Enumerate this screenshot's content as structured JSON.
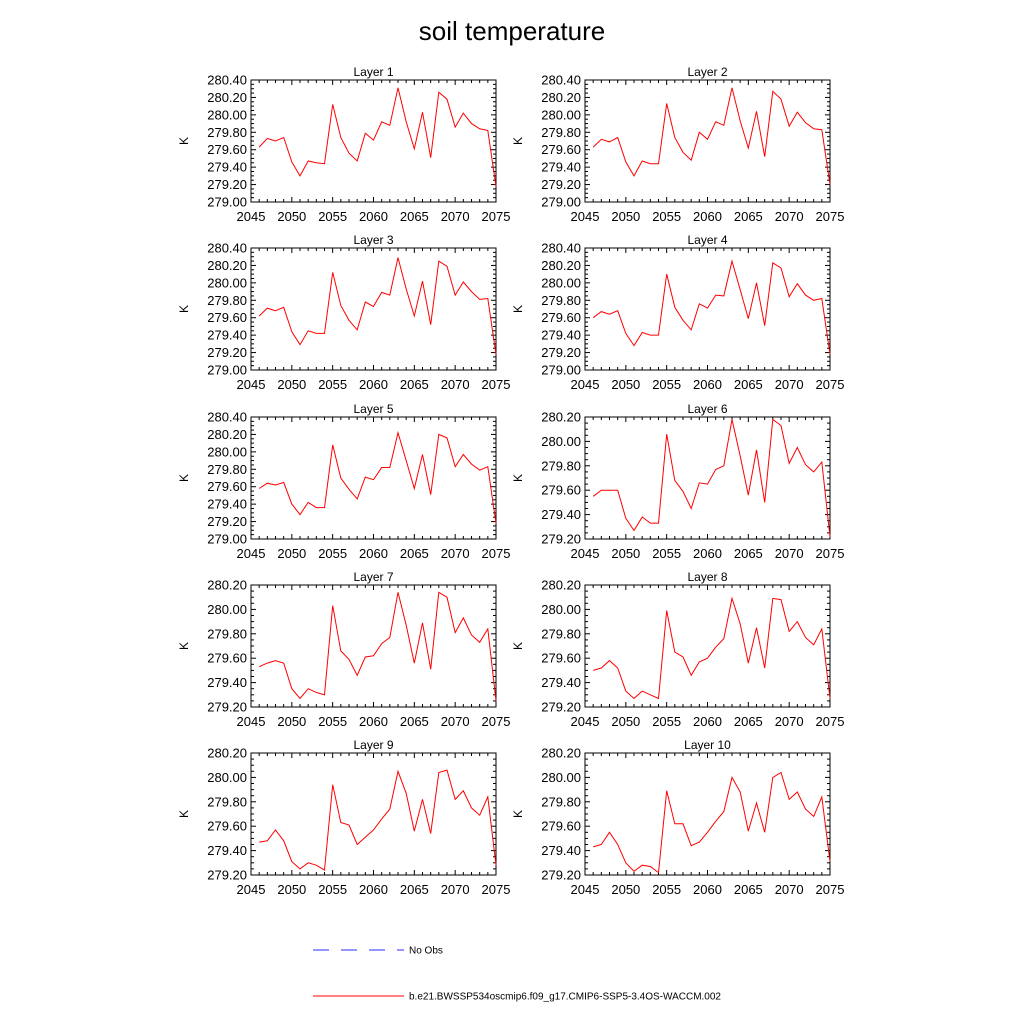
{
  "chart_data": {
    "type": "line",
    "title": "soil temperature",
    "legend": {
      "placement": "bottom-center",
      "entries": [
        {
          "label": "No Obs",
          "color": "#2b2bff",
          "style": "dashed"
        },
        {
          "label": "b.e21.BWSSP534oscmip6.f09_g17.CMIP6-SSP5-3.4OS-WACCM.002",
          "color": "#ff0000",
          "style": "solid"
        }
      ]
    },
    "x": [
      2046,
      2047,
      2048,
      2049,
      2050,
      2051,
      2052,
      2053,
      2054,
      2055,
      2056,
      2057,
      2058,
      2059,
      2060,
      2061,
      2062,
      2063,
      2064,
      2065,
      2066,
      2067,
      2068,
      2069,
      2070,
      2071,
      2072,
      2073,
      2074,
      2075
    ],
    "xlim": [
      2045,
      2075
    ],
    "xticks": [
      "2045",
      "2050",
      "2055",
      "2060",
      "2065",
      "2070",
      "2075"
    ],
    "panels": [
      {
        "title": "Layer 1",
        "ylabel": "K",
        "ylim": [
          279.0,
          280.4
        ],
        "yticks": [
          "279.00",
          "279.20",
          "279.40",
          "279.60",
          "279.80",
          "280.00",
          "280.20",
          "280.40"
        ],
        "values": [
          279.63,
          279.73,
          279.7,
          279.74,
          279.46,
          279.3,
          279.47,
          279.45,
          279.44,
          280.12,
          279.74,
          279.56,
          279.47,
          279.79,
          279.71,
          279.92,
          279.88,
          280.31,
          279.92,
          279.61,
          280.03,
          279.51,
          280.26,
          280.18,
          279.86,
          280.02,
          279.9,
          279.84,
          279.82,
          279.18
        ]
      },
      {
        "title": "Layer 2",
        "ylabel": "K",
        "ylim": [
          279.0,
          280.4
        ],
        "yticks": [
          "279.00",
          "279.20",
          "279.40",
          "279.60",
          "279.80",
          "280.00",
          "280.20",
          "280.40"
        ],
        "values": [
          279.63,
          279.72,
          279.69,
          279.74,
          279.46,
          279.3,
          279.47,
          279.44,
          279.44,
          280.13,
          279.74,
          279.57,
          279.48,
          279.8,
          279.72,
          279.92,
          279.88,
          280.31,
          279.93,
          279.62,
          280.04,
          279.52,
          280.27,
          280.18,
          279.87,
          280.03,
          279.91,
          279.84,
          279.83,
          279.2
        ]
      },
      {
        "title": "Layer 3",
        "ylabel": "K",
        "ylim": [
          279.0,
          280.4
        ],
        "yticks": [
          "279.00",
          "279.20",
          "279.40",
          "279.60",
          "279.80",
          "280.00",
          "280.20",
          "280.40"
        ],
        "values": [
          279.62,
          279.71,
          279.68,
          279.72,
          279.44,
          279.29,
          279.45,
          279.42,
          279.42,
          280.12,
          279.74,
          279.57,
          279.46,
          279.78,
          279.73,
          279.89,
          279.86,
          280.29,
          279.93,
          279.62,
          280.02,
          279.52,
          280.25,
          280.19,
          279.86,
          280.01,
          279.9,
          279.81,
          279.82,
          279.18
        ]
      },
      {
        "title": "Layer 4",
        "ylabel": "K",
        "ylim": [
          279.0,
          280.4
        ],
        "yticks": [
          "279.00",
          "279.20",
          "279.40",
          "279.60",
          "279.80",
          "280.00",
          "280.20",
          "280.40"
        ],
        "values": [
          279.6,
          279.67,
          279.64,
          279.68,
          279.42,
          279.28,
          279.43,
          279.4,
          279.4,
          280.1,
          279.72,
          279.57,
          279.46,
          279.76,
          279.71,
          279.86,
          279.85,
          280.25,
          279.92,
          279.59,
          280.0,
          279.51,
          280.23,
          280.17,
          279.84,
          279.99,
          279.86,
          279.8,
          279.82,
          279.18
        ]
      },
      {
        "title": "Layer 5",
        "ylabel": "K",
        "ylim": [
          279.0,
          280.4
        ],
        "yticks": [
          "279.00",
          "279.20",
          "279.40",
          "279.60",
          "279.80",
          "280.00",
          "280.20",
          "280.40"
        ],
        "values": [
          279.58,
          279.64,
          279.62,
          279.65,
          279.4,
          279.28,
          279.42,
          279.36,
          279.36,
          280.08,
          279.7,
          279.57,
          279.46,
          279.71,
          279.68,
          279.82,
          279.82,
          280.22,
          279.9,
          279.58,
          279.97,
          279.51,
          280.2,
          280.16,
          279.83,
          279.97,
          279.86,
          279.79,
          279.83,
          279.18
        ]
      },
      {
        "title": "Layer 6",
        "ylabel": "K",
        "ylim": [
          279.2,
          280.2
        ],
        "yticks": [
          "279.20",
          "279.40",
          "279.60",
          "279.80",
          "280.00",
          "280.20"
        ],
        "values": [
          279.55,
          279.6,
          279.6,
          279.6,
          279.37,
          279.27,
          279.38,
          279.33,
          279.33,
          280.06,
          279.68,
          279.59,
          279.45,
          279.66,
          279.65,
          279.77,
          279.8,
          280.18,
          279.88,
          279.56,
          279.93,
          279.5,
          280.18,
          280.13,
          279.82,
          279.95,
          279.81,
          279.75,
          279.83,
          279.22
        ]
      },
      {
        "title": "Layer 7",
        "ylabel": "K",
        "ylim": [
          279.2,
          280.2
        ],
        "yticks": [
          "279.20",
          "279.40",
          "279.60",
          "279.80",
          "280.00",
          "280.20"
        ],
        "values": [
          279.53,
          279.56,
          279.58,
          279.56,
          279.35,
          279.27,
          279.35,
          279.32,
          279.3,
          280.03,
          279.66,
          279.59,
          279.46,
          279.61,
          279.62,
          279.72,
          279.77,
          280.14,
          279.87,
          279.56,
          279.89,
          279.51,
          280.14,
          280.1,
          279.81,
          279.93,
          279.79,
          279.73,
          279.84,
          279.25
        ]
      },
      {
        "title": "Layer 8",
        "ylabel": "K",
        "ylim": [
          279.2,
          280.2
        ],
        "yticks": [
          "279.20",
          "279.40",
          "279.60",
          "279.80",
          "280.00",
          "280.20"
        ],
        "values": [
          279.5,
          279.52,
          279.58,
          279.52,
          279.33,
          279.27,
          279.33,
          279.3,
          279.27,
          279.99,
          279.65,
          279.61,
          279.46,
          279.57,
          279.6,
          279.69,
          279.76,
          280.09,
          279.88,
          279.56,
          279.85,
          279.52,
          280.09,
          280.08,
          279.82,
          279.9,
          279.77,
          279.71,
          279.84,
          279.27
        ]
      },
      {
        "title": "Layer 9",
        "ylabel": "K",
        "ylim": [
          279.2,
          280.2
        ],
        "yticks": [
          "279.20",
          "279.40",
          "279.60",
          "279.80",
          "280.00",
          "280.20"
        ],
        "values": [
          279.47,
          279.48,
          279.57,
          279.48,
          279.31,
          279.25,
          279.3,
          279.28,
          279.24,
          279.94,
          279.63,
          279.61,
          279.45,
          279.51,
          279.57,
          279.66,
          279.74,
          280.05,
          279.87,
          279.56,
          279.82,
          279.54,
          280.04,
          280.06,
          279.82,
          279.89,
          279.75,
          279.69,
          279.84,
          279.28
        ]
      },
      {
        "title": "Layer 10",
        "ylabel": "K",
        "ylim": [
          279.2,
          280.2
        ],
        "yticks": [
          "279.20",
          "279.40",
          "279.60",
          "279.80",
          "280.00",
          "280.20"
        ],
        "values": [
          279.43,
          279.45,
          279.55,
          279.45,
          279.3,
          279.23,
          279.28,
          279.27,
          279.22,
          279.89,
          279.62,
          279.62,
          279.44,
          279.47,
          279.55,
          279.64,
          279.72,
          280.0,
          279.88,
          279.56,
          279.79,
          279.55,
          280.0,
          280.04,
          279.82,
          279.88,
          279.74,
          279.68,
          279.84,
          279.31
        ]
      }
    ]
  }
}
